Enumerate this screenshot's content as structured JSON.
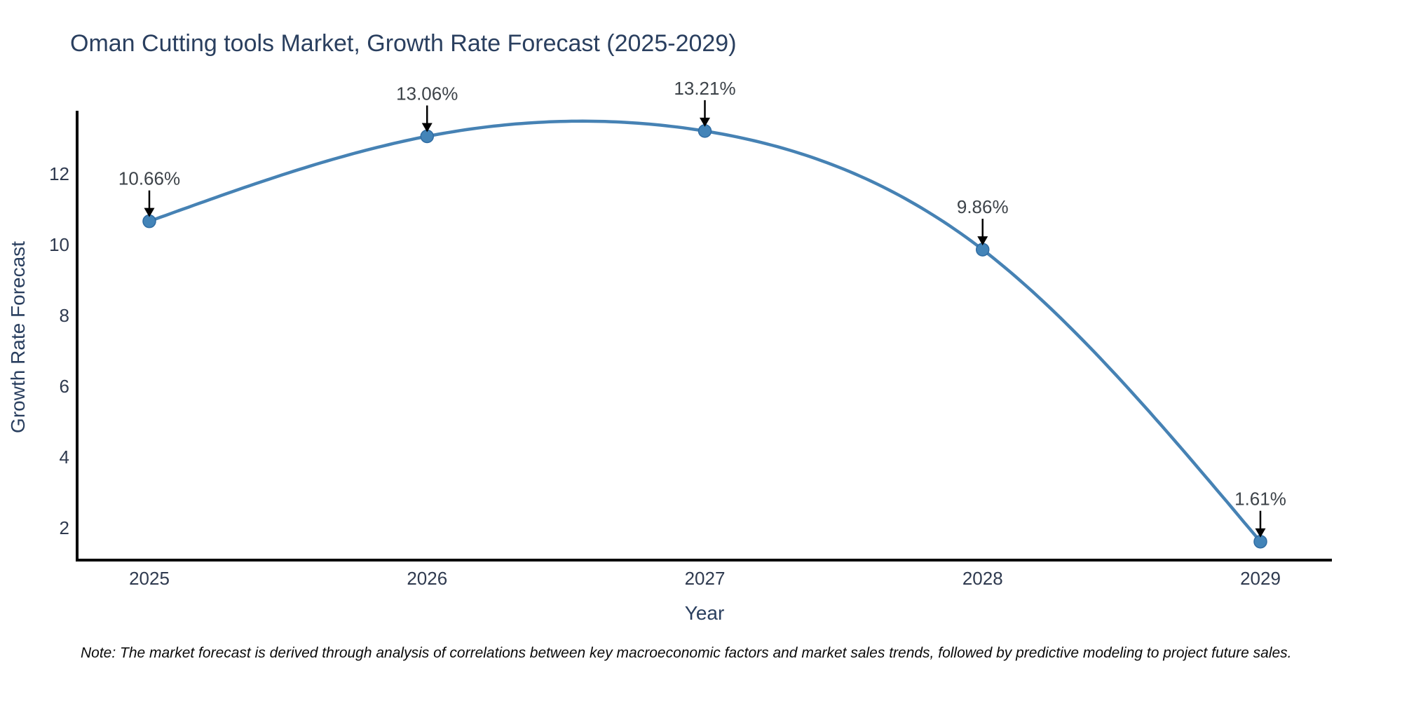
{
  "chart_data": {
    "type": "line",
    "title": "Oman Cutting tools Market, Growth Rate Forecast (2025-2029)",
    "xlabel": "Year",
    "ylabel": "Growth Rate Forecast",
    "x": [
      2025,
      2026,
      2027,
      2028,
      2029
    ],
    "series": [
      {
        "name": "Growth Rate Forecast",
        "values": [
          10.66,
          13.06,
          13.21,
          9.86,
          1.61
        ]
      }
    ],
    "point_labels": [
      "10.66%",
      "13.06%",
      "13.21%",
      "9.86%",
      "1.61%"
    ],
    "yticks": [
      2,
      4,
      6,
      8,
      10,
      12
    ],
    "ylim": [
      1.1,
      14.7
    ],
    "xlim": [
      2024.74,
      2029.26
    ],
    "grid": false,
    "legend": "none",
    "curve": "cubic-spline",
    "marker": "circle"
  },
  "note": "Note: The market forecast is derived through analysis of correlations between key macroeconomic factors and market sales trends, followed by predictive modeling to project future sales.",
  "colors": {
    "line": "#4682b4",
    "marker_fill": "#4384b8",
    "marker_edge": "#2f6ca3",
    "axis": "#000000",
    "title": "#2a3f5f",
    "tick": "#2f3a4f",
    "annotation_text": "#3d4349",
    "arrow": "#000000",
    "background": "#ffffff"
  }
}
